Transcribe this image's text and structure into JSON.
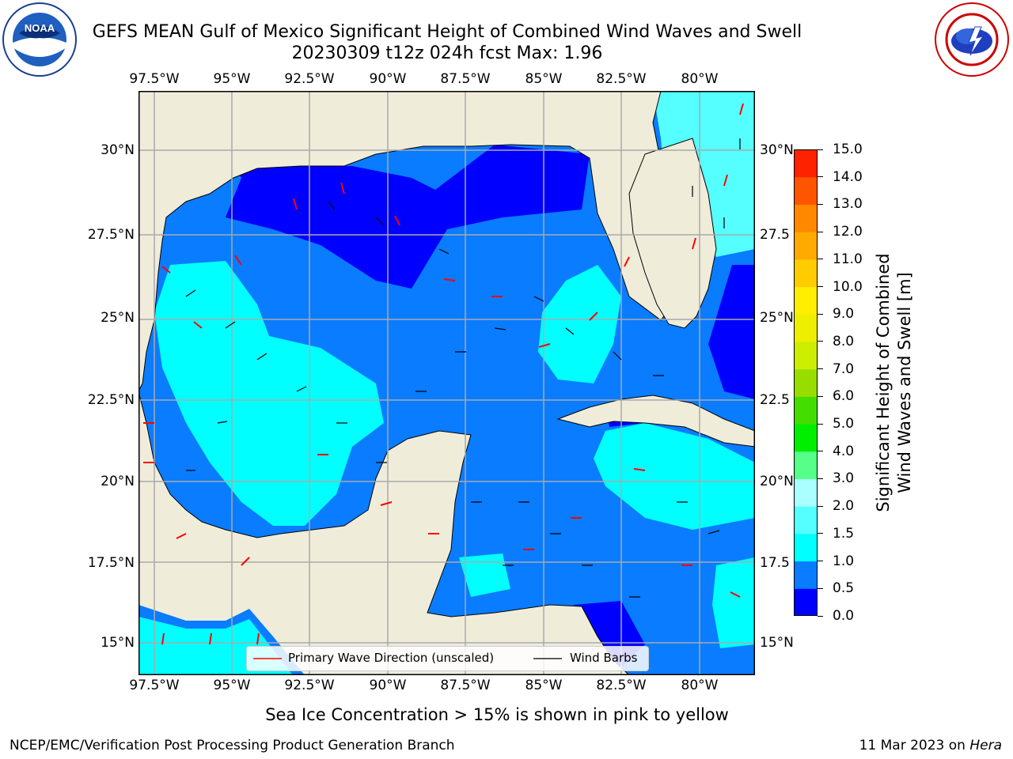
{
  "title": {
    "line1": "GEFS MEAN Gulf of Mexico Significant Height of Combined Wind Waves and Swell",
    "line2": "20230309 t12z 024h fcst   Max: 1.96"
  },
  "logos": {
    "left": "NOAA",
    "left_ring": "NATIONAL OCEANIC AND ATMOSPHERIC ADMINISTRATION · U.S. DEPARTMENT OF COMMERCE",
    "right_ring": "NATIONAL WEATHER SERVICE"
  },
  "axes": {
    "lon_labels": [
      "97.5°W",
      "95°W",
      "92.5°W",
      "90°W",
      "87.5°W",
      "85°W",
      "82.5°W",
      "80°W"
    ],
    "lat_labels_left": [
      "30°N",
      "27.5°N",
      "25°N",
      "22.5°N",
      "20°N",
      "17.5°N",
      "15°N"
    ],
    "lat_labels_right": [
      "30°N",
      "27.5",
      "25°N",
      "22.5",
      "20°N",
      "17.5",
      "15°N"
    ]
  },
  "legend": {
    "wave_direction": "Primary Wave Direction (unscaled)",
    "wind_barbs": "Wind Barbs"
  },
  "colorbar": {
    "label": "Significant Height of Combined Wind Waves and Swell [m]",
    "label_line1": "Significant Height of Combined",
    "label_line2": "Wind Waves and Swell [m]",
    "ticks": [
      "0.0",
      "0.5",
      "1.0",
      "1.5",
      "2.0",
      "3.0",
      "4.0",
      "5.0",
      "6.0",
      "7.0",
      "8.0",
      "9.0",
      "10.0",
      "11.0",
      "12.0",
      "13.0",
      "14.0",
      "15.0"
    ],
    "colors": [
      "#0000ff",
      "#0a7cff",
      "#00ffff",
      "#55ffff",
      "#aaffff",
      "#55ff88",
      "#00ee00",
      "#44dd00",
      "#99dd00",
      "#ccee00",
      "#eeee00",
      "#ffee00",
      "#ffcc00",
      "#ffaa00",
      "#ff8800",
      "#ff5500",
      "#ff2200"
    ]
  },
  "note": "Sea Ice Concentration > 15% is shown in pink to yellow",
  "footer": {
    "left": "NCEP/EMC/Verification Post Processing Product Generation Branch",
    "right_date": "11 Mar 2023 on ",
    "right_host": "Hera"
  },
  "colors": {
    "land": "#efecda",
    "h_0_05": "#0000ff",
    "h_05_10": "#0a7cff",
    "h_10_15": "#00ffff",
    "h_15_20": "#55ffff",
    "wave_arrow": "#ff0000",
    "grid": "#aaaaaa"
  }
}
